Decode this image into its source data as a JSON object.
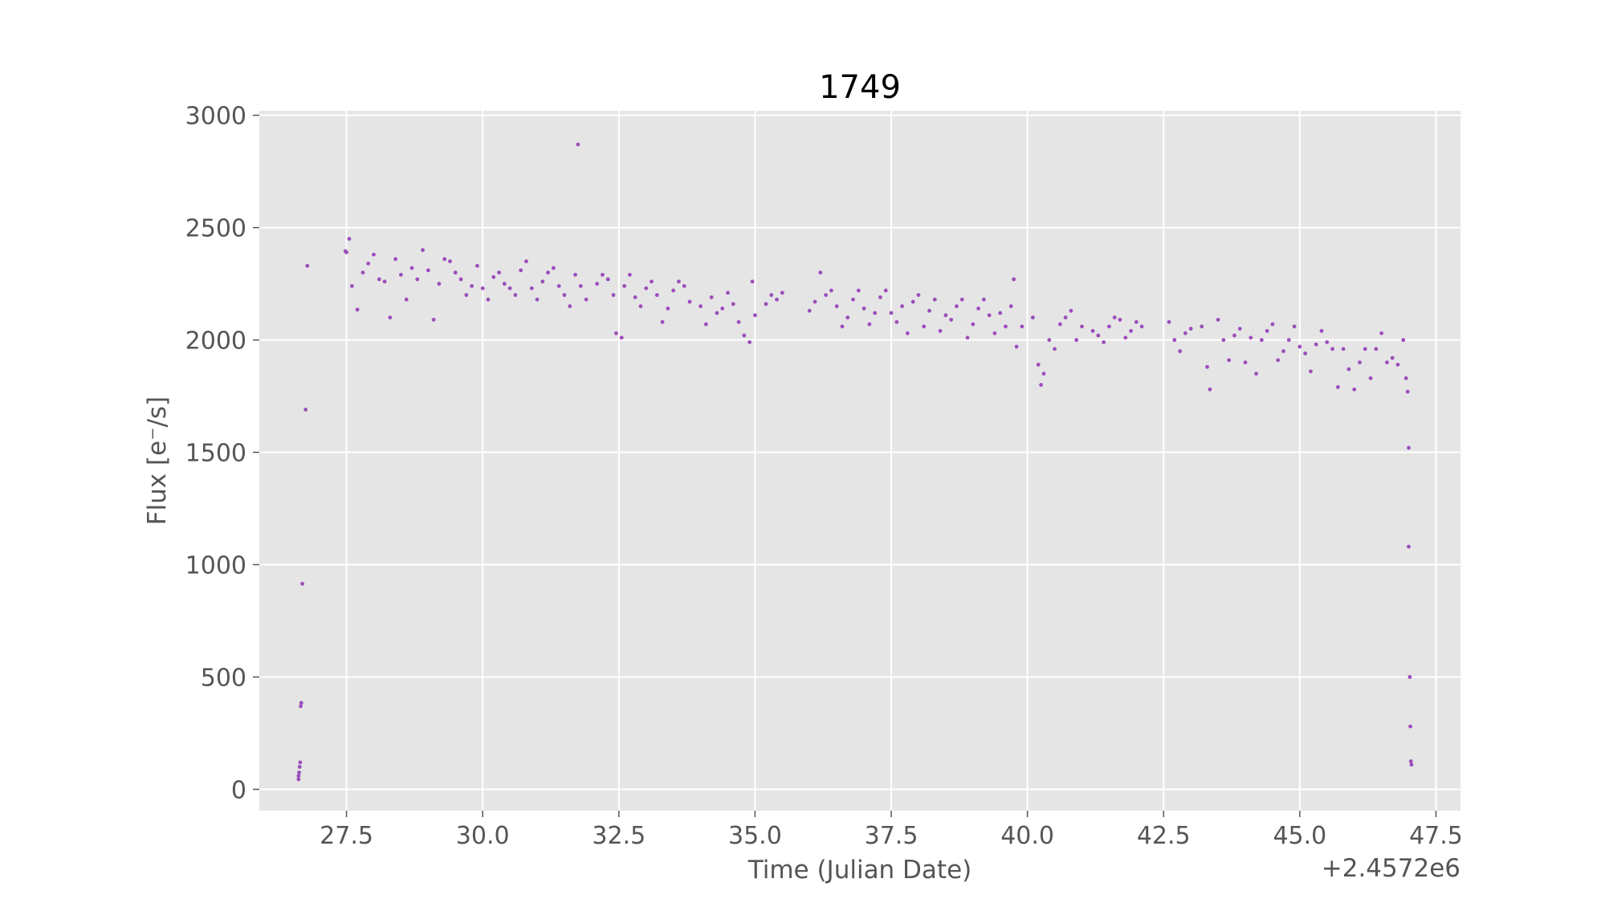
{
  "chart_data": {
    "type": "scatter",
    "title": "1749",
    "xlabel": "Time (Julian Date)",
    "ylabel": "Flux [e⁻/s]",
    "x_offset_label": "+2.4572e6",
    "xlim": [
      25.9,
      47.95
    ],
    "ylim": [
      -95,
      3020
    ],
    "xticks": [
      27.5,
      30.0,
      32.5,
      35.0,
      37.5,
      40.0,
      42.5,
      45.0,
      47.5
    ],
    "xtick_labels": [
      "27.5",
      "30.0",
      "32.5",
      "35.0",
      "37.5",
      "40.0",
      "42.5",
      "45.0",
      "47.5"
    ],
    "yticks": [
      0,
      500,
      1000,
      1500,
      2000,
      2500,
      3000
    ],
    "ytick_labels": [
      "0",
      "500",
      "1000",
      "1500",
      "2000",
      "2500",
      "3000"
    ],
    "grid": true,
    "style": "ggplot",
    "colors": {
      "points": "#9b4dbb",
      "axes_bg": "#e5e5e5",
      "grid": "#ffffff",
      "tick_text": "#555555"
    },
    "series": [
      {
        "points": [
          [
            26.62,
            45
          ],
          [
            26.62,
            60
          ],
          [
            26.63,
            75
          ],
          [
            26.64,
            100
          ],
          [
            26.65,
            120
          ],
          [
            26.66,
            370
          ],
          [
            26.67,
            385
          ],
          [
            26.69,
            915
          ],
          [
            26.75,
            1690
          ],
          [
            26.78,
            2330
          ],
          [
            27.48,
            2395
          ],
          [
            27.5,
            2390
          ],
          [
            27.55,
            2450
          ],
          [
            27.6,
            2240
          ],
          [
            27.7,
            2135
          ],
          [
            27.8,
            2300
          ],
          [
            27.9,
            2340
          ],
          [
            28.0,
            2380
          ],
          [
            28.1,
            2270
          ],
          [
            28.2,
            2260
          ],
          [
            28.3,
            2100
          ],
          [
            28.4,
            2360
          ],
          [
            28.5,
            2290
          ],
          [
            28.6,
            2180
          ],
          [
            28.7,
            2320
          ],
          [
            28.8,
            2270
          ],
          [
            28.9,
            2400
          ],
          [
            29.0,
            2310
          ],
          [
            29.1,
            2090
          ],
          [
            29.2,
            2250
          ],
          [
            29.3,
            2360
          ],
          [
            29.4,
            2350
          ],
          [
            29.5,
            2300
          ],
          [
            29.6,
            2270
          ],
          [
            29.7,
            2200
          ],
          [
            29.8,
            2240
          ],
          [
            29.9,
            2330
          ],
          [
            30.0,
            2230
          ],
          [
            30.1,
            2180
          ],
          [
            30.2,
            2280
          ],
          [
            30.3,
            2300
          ],
          [
            30.4,
            2250
          ],
          [
            30.5,
            2230
          ],
          [
            30.6,
            2200
          ],
          [
            30.7,
            2310
          ],
          [
            30.8,
            2350
          ],
          [
            30.9,
            2230
          ],
          [
            31.0,
            2180
          ],
          [
            31.1,
            2260
          ],
          [
            31.2,
            2300
          ],
          [
            31.3,
            2320
          ],
          [
            31.4,
            2240
          ],
          [
            31.5,
            2200
          ],
          [
            31.6,
            2150
          ],
          [
            31.7,
            2290
          ],
          [
            31.75,
            2870
          ],
          [
            31.8,
            2240
          ],
          [
            31.9,
            2180
          ],
          [
            32.1,
            2250
          ],
          [
            32.2,
            2290
          ],
          [
            32.3,
            2270
          ],
          [
            32.4,
            2200
          ],
          [
            32.45,
            2030
          ],
          [
            32.55,
            2010
          ],
          [
            32.6,
            2240
          ],
          [
            32.7,
            2290
          ],
          [
            32.8,
            2190
          ],
          [
            32.9,
            2150
          ],
          [
            33.0,
            2230
          ],
          [
            33.1,
            2260
          ],
          [
            33.2,
            2200
          ],
          [
            33.3,
            2080
          ],
          [
            33.4,
            2140
          ],
          [
            33.5,
            2220
          ],
          [
            33.6,
            2260
          ],
          [
            33.7,
            2240
          ],
          [
            33.8,
            2170
          ],
          [
            34.0,
            2150
          ],
          [
            34.1,
            2070
          ],
          [
            34.2,
            2190
          ],
          [
            34.3,
            2120
          ],
          [
            34.4,
            2140
          ],
          [
            34.5,
            2210
          ],
          [
            34.6,
            2160
          ],
          [
            34.7,
            2080
          ],
          [
            34.8,
            2020
          ],
          [
            34.9,
            1990
          ],
          [
            34.95,
            2260
          ],
          [
            35.0,
            2110
          ],
          [
            35.2,
            2160
          ],
          [
            35.3,
            2200
          ],
          [
            35.4,
            2180
          ],
          [
            35.5,
            2210
          ],
          [
            36.0,
            2130
          ],
          [
            36.1,
            2170
          ],
          [
            36.2,
            2300
          ],
          [
            36.3,
            2200
          ],
          [
            36.4,
            2220
          ],
          [
            36.5,
            2150
          ],
          [
            36.6,
            2060
          ],
          [
            36.7,
            2100
          ],
          [
            36.8,
            2180
          ],
          [
            36.9,
            2220
          ],
          [
            37.0,
            2140
          ],
          [
            37.1,
            2070
          ],
          [
            37.2,
            2120
          ],
          [
            37.3,
            2190
          ],
          [
            37.4,
            2220
          ],
          [
            37.5,
            2120
          ],
          [
            37.6,
            2080
          ],
          [
            37.7,
            2150
          ],
          [
            37.8,
            2030
          ],
          [
            37.9,
            2170
          ],
          [
            38.0,
            2200
          ],
          [
            38.1,
            2060
          ],
          [
            38.2,
            2130
          ],
          [
            38.3,
            2180
          ],
          [
            38.4,
            2040
          ],
          [
            38.5,
            2110
          ],
          [
            38.6,
            2090
          ],
          [
            38.7,
            2150
          ],
          [
            38.8,
            2180
          ],
          [
            38.9,
            2010
          ],
          [
            39.0,
            2070
          ],
          [
            39.1,
            2140
          ],
          [
            39.2,
            2180
          ],
          [
            39.3,
            2110
          ],
          [
            39.4,
            2030
          ],
          [
            39.5,
            2120
          ],
          [
            39.6,
            2060
          ],
          [
            39.7,
            2150
          ],
          [
            39.75,
            2270
          ],
          [
            39.8,
            1970
          ],
          [
            39.9,
            2060
          ],
          [
            40.1,
            2100
          ],
          [
            40.2,
            1890
          ],
          [
            40.25,
            1800
          ],
          [
            40.3,
            1850
          ],
          [
            40.4,
            2000
          ],
          [
            40.5,
            1960
          ],
          [
            40.6,
            2070
          ],
          [
            40.7,
            2100
          ],
          [
            40.8,
            2130
          ],
          [
            40.9,
            2000
          ],
          [
            41.0,
            2060
          ],
          [
            41.2,
            2040
          ],
          [
            41.3,
            2020
          ],
          [
            41.4,
            1990
          ],
          [
            41.5,
            2060
          ],
          [
            41.6,
            2100
          ],
          [
            41.7,
            2090
          ],
          [
            41.8,
            2010
          ],
          [
            41.9,
            2040
          ],
          [
            42.0,
            2080
          ],
          [
            42.1,
            2060
          ],
          [
            42.6,
            2080
          ],
          [
            42.7,
            2000
          ],
          [
            42.8,
            1950
          ],
          [
            42.9,
            2030
          ],
          [
            43.0,
            2050
          ],
          [
            43.2,
            2060
          ],
          [
            43.3,
            1880
          ],
          [
            43.35,
            1780
          ],
          [
            43.5,
            2090
          ],
          [
            43.6,
            2000
          ],
          [
            43.7,
            1910
          ],
          [
            43.8,
            2020
          ],
          [
            43.9,
            2050
          ],
          [
            44.0,
            1900
          ],
          [
            44.1,
            2010
          ],
          [
            44.2,
            1850
          ],
          [
            44.3,
            2000
          ],
          [
            44.4,
            2040
          ],
          [
            44.5,
            2070
          ],
          [
            44.6,
            1910
          ],
          [
            44.7,
            1950
          ],
          [
            44.8,
            2000
          ],
          [
            44.9,
            2060
          ],
          [
            45.0,
            1970
          ],
          [
            45.1,
            1940
          ],
          [
            45.2,
            1860
          ],
          [
            45.3,
            1980
          ],
          [
            45.4,
            2040
          ],
          [
            45.5,
            1990
          ],
          [
            45.6,
            1960
          ],
          [
            45.7,
            1790
          ],
          [
            45.8,
            1960
          ],
          [
            45.9,
            1870
          ],
          [
            46.0,
            1780
          ],
          [
            46.1,
            1900
          ],
          [
            46.2,
            1960
          ],
          [
            46.3,
            1830
          ],
          [
            46.4,
            1960
          ],
          [
            46.5,
            2030
          ],
          [
            46.6,
            1900
          ],
          [
            46.7,
            1920
          ],
          [
            46.8,
            1890
          ],
          [
            46.9,
            2000
          ],
          [
            46.95,
            1830
          ],
          [
            46.98,
            1770
          ],
          [
            47.0,
            1520
          ],
          [
            47.0,
            1080
          ],
          [
            47.02,
            500
          ],
          [
            47.03,
            280
          ],
          [
            47.04,
            125
          ],
          [
            47.05,
            110
          ]
        ]
      }
    ]
  }
}
